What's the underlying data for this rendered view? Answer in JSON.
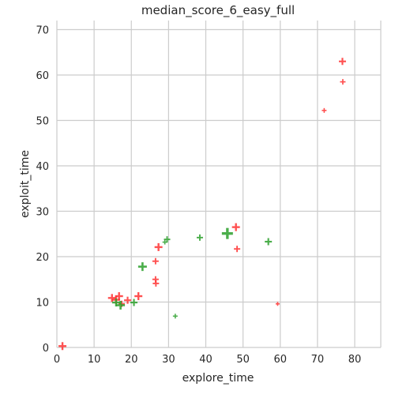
{
  "chart_data": {
    "type": "scatter",
    "title": "median_score_6_easy_full",
    "xlabel": "explore_time",
    "ylabel": "exploit_time",
    "xlim": [
      0,
      87
    ],
    "ylim": [
      0,
      72
    ],
    "x_ticks": [
      0,
      10,
      20,
      30,
      40,
      50,
      60,
      70,
      80
    ],
    "y_ticks": [
      0,
      10,
      20,
      30,
      40,
      50,
      60,
      70
    ],
    "grid": true,
    "marker": "plus",
    "series": [
      {
        "color": "#ff3333",
        "points": [
          {
            "x": 1.5,
            "y": 0.3,
            "size": 1.0
          },
          {
            "x": 14.8,
            "y": 10.9,
            "size": 1.0
          },
          {
            "x": 15.9,
            "y": 10.5,
            "size": 1.0
          },
          {
            "x": 16.7,
            "y": 11.3,
            "size": 1.0
          },
          {
            "x": 17.4,
            "y": 9.6,
            "size": 0.8
          },
          {
            "x": 19.0,
            "y": 10.4,
            "size": 0.9
          },
          {
            "x": 21.9,
            "y": 11.3,
            "size": 1.0
          },
          {
            "x": 26.5,
            "y": 15.0,
            "size": 0.8
          },
          {
            "x": 26.6,
            "y": 14.1,
            "size": 0.8
          },
          {
            "x": 26.5,
            "y": 19.0,
            "size": 0.8
          },
          {
            "x": 27.3,
            "y": 22.1,
            "size": 1.0
          },
          {
            "x": 48.1,
            "y": 26.5,
            "size": 1.0
          },
          {
            "x": 48.4,
            "y": 21.7,
            "size": 0.8
          },
          {
            "x": 59.3,
            "y": 9.6,
            "size": 0.5
          },
          {
            "x": 71.8,
            "y": 52.2,
            "size": 0.6
          },
          {
            "x": 76.7,
            "y": 63.0,
            "size": 0.9
          },
          {
            "x": 76.8,
            "y": 58.5,
            "size": 0.7
          }
        ]
      },
      {
        "color": "#2ca02c",
        "points": [
          {
            "x": 15.9,
            "y": 9.9,
            "size": 1.0
          },
          {
            "x": 17.1,
            "y": 9.3,
            "size": 1.1
          },
          {
            "x": 20.7,
            "y": 9.9,
            "size": 0.9
          },
          {
            "x": 23.0,
            "y": 17.8,
            "size": 1.1
          },
          {
            "x": 29.0,
            "y": 23.2,
            "size": 0.6
          },
          {
            "x": 29.6,
            "y": 23.8,
            "size": 0.8
          },
          {
            "x": 31.8,
            "y": 6.9,
            "size": 0.6
          },
          {
            "x": 38.4,
            "y": 24.2,
            "size": 0.8
          },
          {
            "x": 45.8,
            "y": 25.1,
            "size": 1.4
          },
          {
            "x": 56.8,
            "y": 23.3,
            "size": 0.9
          }
        ]
      }
    ]
  }
}
